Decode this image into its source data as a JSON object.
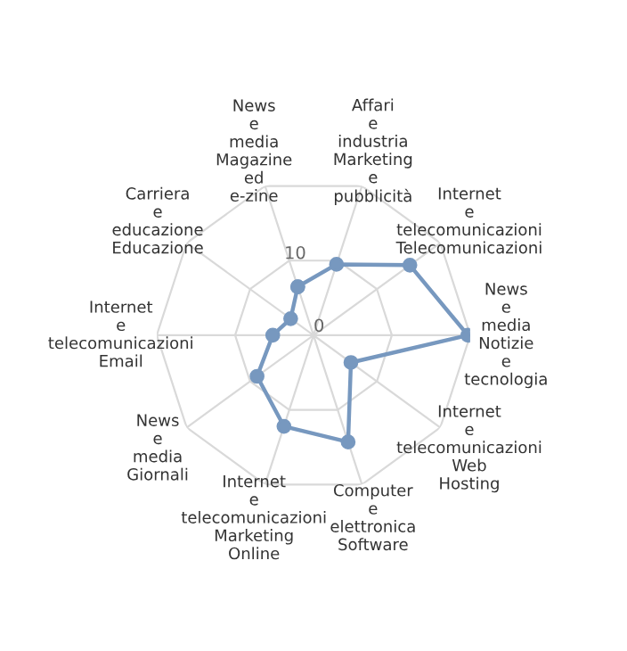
{
  "chart_data": {
    "type": "radar",
    "categories": [
      "News e media\nMagazine ed e-zine",
      "Affari e industria\nMarketing e pubblicità",
      "Internet e telecomunicazioni\nTelecomunicazioni",
      "News e media\nNotizie e tecnologia",
      "Internet e telecomunicazioni\nWeb Hosting",
      "Computer e elettronica\nSoftware",
      "Internet e telecomunicazioni\nMarketing Online",
      "News e media\nGiornali",
      "Internet e telecomunicazioni\nEmail",
      "Carriera e educazione\nEducazione"
    ],
    "series": [
      {
        "color": "#7798bf",
        "values": [
          6.5,
          9.5,
          15.2,
          19.7,
          5.9,
          14.3,
          12.2,
          8.9,
          5.2,
          3.6
        ]
      }
    ],
    "ylim": [
      0,
      20
    ],
    "yticks": [
      0,
      10
    ],
    "grid": true,
    "marker": "circle",
    "line_style": "solid"
  }
}
